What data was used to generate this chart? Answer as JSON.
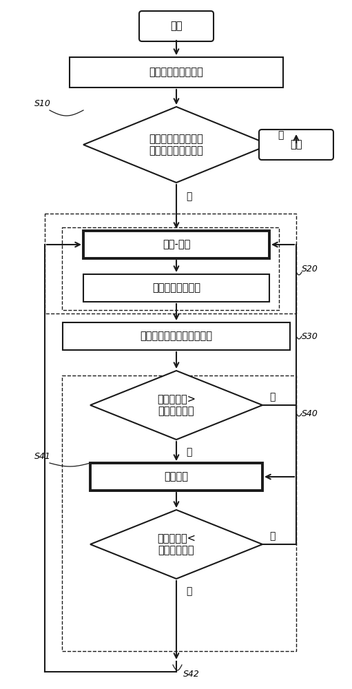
{
  "bg_color": "#ffffff",
  "line_color": "#1a1a1a",
  "font_size_main": 10.5,
  "font_size_label": 10,
  "font_size_annot": 9,
  "start_text": "开始",
  "end_text": "结束",
  "box1_text": "确定哪个车辆在移动",
  "dia1_text": "当变速排挡耦接到离\n合器时车辆移动吗？",
  "box2_text": "滑移-控制",
  "box3_text": "执行传递转矩学习",
  "box4_text": "检查传递转矩和学习可靠性",
  "dia2_text": "学习可靠性>\n上限参考値？",
  "box5_text": "锁定控制",
  "dia3_text": "学习可靠性<\n下限参考値？",
  "no_text": "否",
  "yes_text": "是",
  "s10": "S10",
  "s20": "S20",
  "s30": "S30",
  "s40": "S40",
  "s41": "S41",
  "s42": "S42"
}
